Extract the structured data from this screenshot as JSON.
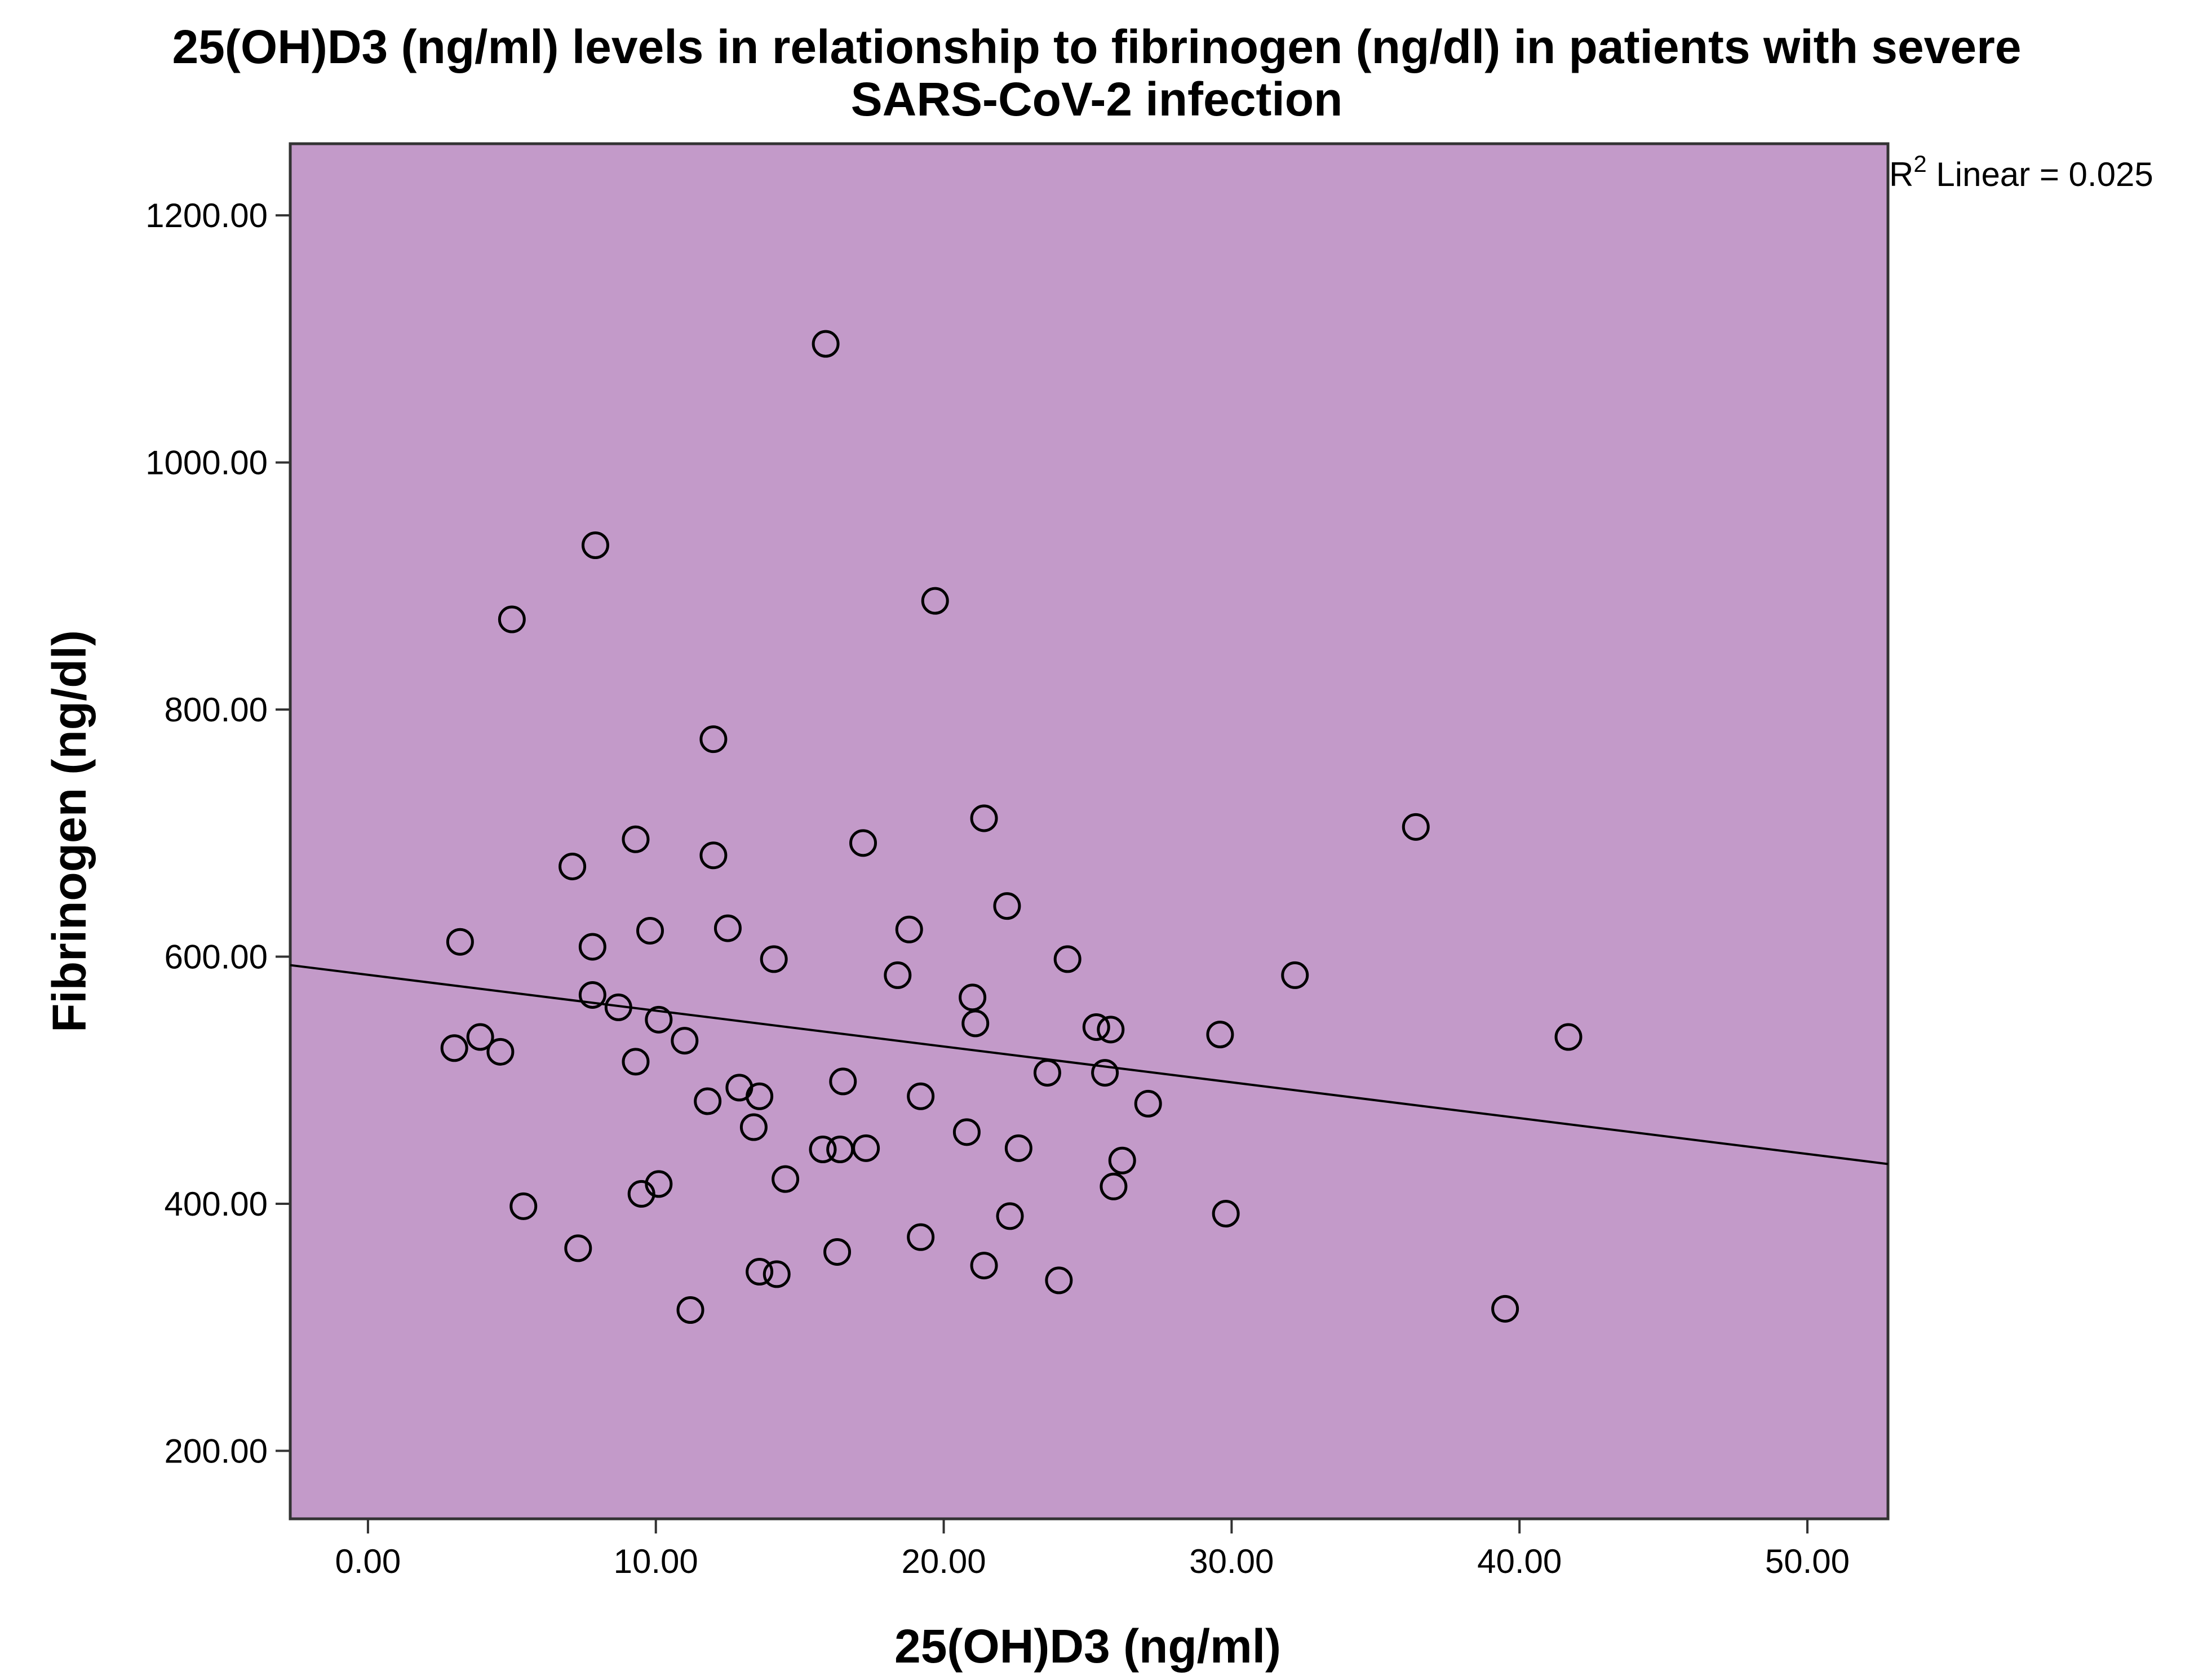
{
  "chart_data": {
    "type": "scatter",
    "title_line1": "25(OH)D3 (ng/ml) levels in relationship to fibrinogen (ng/dl) in patients with severe",
    "title_line2": "SARS-CoV-2 infection",
    "xlabel": "25(OH)D3 (ng/ml)",
    "ylabel": "Fibrinogen (ng/dl)",
    "xlim": [
      -2.7,
      52.8
    ],
    "ylim": [
      145,
      1258
    ],
    "x_ticks": [
      0,
      10,
      20,
      30,
      40,
      50
    ],
    "x_tick_labels": [
      "0.00",
      "10.00",
      "20.00",
      "30.00",
      "40.00",
      "50.00"
    ],
    "y_ticks": [
      200,
      400,
      600,
      800,
      1000,
      1200
    ],
    "y_tick_labels": [
      "200.00",
      "400.00",
      "600.00",
      "800.00",
      "1000.00",
      "1200.00"
    ],
    "grid": false,
    "plot_background": "#c39ac9",
    "marker": "open-circle",
    "fit_line": {
      "type": "linear",
      "r2_prefix": "R",
      "r2_superscript": "2",
      "r2_text": " Linear = 0.025",
      "intercept": 585.3,
      "slope": -2.9
    },
    "points": [
      {
        "x": 3.2,
        "y": 612
      },
      {
        "x": 3.0,
        "y": 526
      },
      {
        "x": 3.9,
        "y": 535
      },
      {
        "x": 4.6,
        "y": 523
      },
      {
        "x": 5.0,
        "y": 873
      },
      {
        "x": 5.4,
        "y": 398
      },
      {
        "x": 7.1,
        "y": 673
      },
      {
        "x": 7.3,
        "y": 364
      },
      {
        "x": 7.8,
        "y": 608
      },
      {
        "x": 7.8,
        "y": 569
      },
      {
        "x": 7.9,
        "y": 933
      },
      {
        "x": 8.7,
        "y": 559
      },
      {
        "x": 9.3,
        "y": 695
      },
      {
        "x": 9.3,
        "y": 515
      },
      {
        "x": 9.5,
        "y": 408
      },
      {
        "x": 9.8,
        "y": 621
      },
      {
        "x": 10.1,
        "y": 549
      },
      {
        "x": 10.1,
        "y": 416
      },
      {
        "x": 11.0,
        "y": 532
      },
      {
        "x": 11.2,
        "y": 314
      },
      {
        "x": 11.8,
        "y": 483
      },
      {
        "x": 12.0,
        "y": 682
      },
      {
        "x": 12.0,
        "y": 776
      },
      {
        "x": 12.5,
        "y": 623
      },
      {
        "x": 12.9,
        "y": 494
      },
      {
        "x": 13.4,
        "y": 462
      },
      {
        "x": 13.6,
        "y": 487
      },
      {
        "x": 13.6,
        "y": 345
      },
      {
        "x": 14.1,
        "y": 598
      },
      {
        "x": 14.2,
        "y": 343
      },
      {
        "x": 14.5,
        "y": 420
      },
      {
        "x": 15.8,
        "y": 444
      },
      {
        "x": 15.9,
        "y": 1096
      },
      {
        "x": 16.3,
        "y": 361
      },
      {
        "x": 16.4,
        "y": 444
      },
      {
        "x": 16.5,
        "y": 499
      },
      {
        "x": 17.2,
        "y": 692
      },
      {
        "x": 17.3,
        "y": 445
      },
      {
        "x": 18.4,
        "y": 585
      },
      {
        "x": 18.8,
        "y": 622
      },
      {
        "x": 19.2,
        "y": 373
      },
      {
        "x": 19.2,
        "y": 487
      },
      {
        "x": 19.7,
        "y": 888
      },
      {
        "x": 20.8,
        "y": 458
      },
      {
        "x": 21.0,
        "y": 567
      },
      {
        "x": 21.1,
        "y": 546
      },
      {
        "x": 21.4,
        "y": 712
      },
      {
        "x": 21.4,
        "y": 350
      },
      {
        "x": 22.2,
        "y": 641
      },
      {
        "x": 22.3,
        "y": 390
      },
      {
        "x": 22.6,
        "y": 445
      },
      {
        "x": 23.6,
        "y": 506
      },
      {
        "x": 24.0,
        "y": 338
      },
      {
        "x": 24.3,
        "y": 598
      },
      {
        "x": 25.3,
        "y": 543
      },
      {
        "x": 25.6,
        "y": 506
      },
      {
        "x": 25.8,
        "y": 541
      },
      {
        "x": 25.9,
        "y": 414
      },
      {
        "x": 26.2,
        "y": 435
      },
      {
        "x": 27.1,
        "y": 481
      },
      {
        "x": 29.6,
        "y": 537
      },
      {
        "x": 29.8,
        "y": 392
      },
      {
        "x": 32.2,
        "y": 585
      },
      {
        "x": 36.4,
        "y": 705
      },
      {
        "x": 39.5,
        "y": 315
      },
      {
        "x": 41.7,
        "y": 535
      }
    ]
  }
}
